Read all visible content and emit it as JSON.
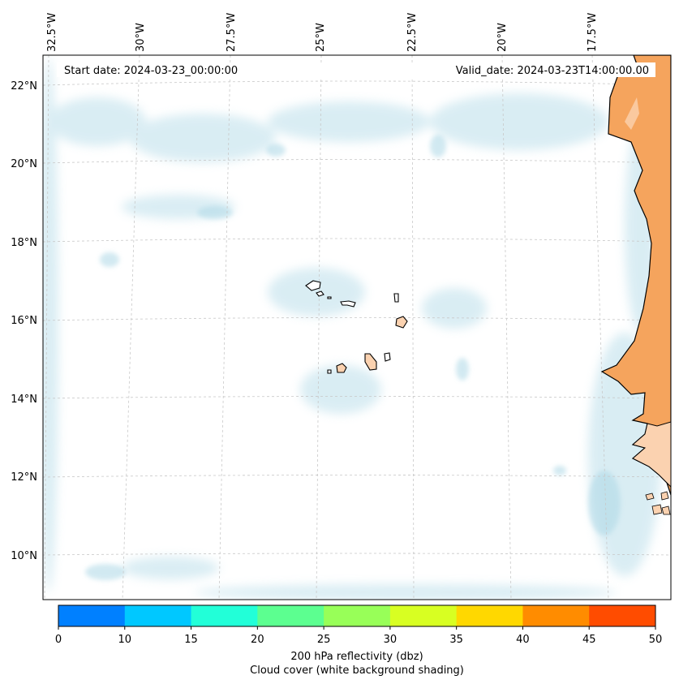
{
  "header": {
    "start_date": "Start date: 2024-03-23_00:00:00",
    "valid_date": "Valid_date: 2024-03-23T14:00:00.00"
  },
  "axes": {
    "lon_labels": [
      "32.5°W",
      "30°W",
      "27.5°W",
      "25°W",
      "22.5°W",
      "20°W",
      "17.5°W"
    ],
    "lat_labels": [
      "22°N",
      "20°N",
      "18°N",
      "16°N",
      "14°N",
      "12°N",
      "10°N"
    ]
  },
  "colorbar": {
    "ticks": [
      "0",
      "10",
      "15",
      "20",
      "25",
      "30",
      "35",
      "40",
      "45",
      "50"
    ],
    "colors": [
      "#0080ff",
      "#00c8ff",
      "#22ffd8",
      "#5cff90",
      "#98ff58",
      "#d8ff22",
      "#ffd800",
      "#ff8c00",
      "#ff4c00"
    ],
    "label_line1": "200 hPa reflectivity (dbz)",
    "label_line2": "Cloud cover (white background shading)"
  },
  "palette": {
    "land": "#f5a45d",
    "land_light": "#fbd2b0",
    "cloud": "#add8e6",
    "grid": "#c8c8c8"
  }
}
